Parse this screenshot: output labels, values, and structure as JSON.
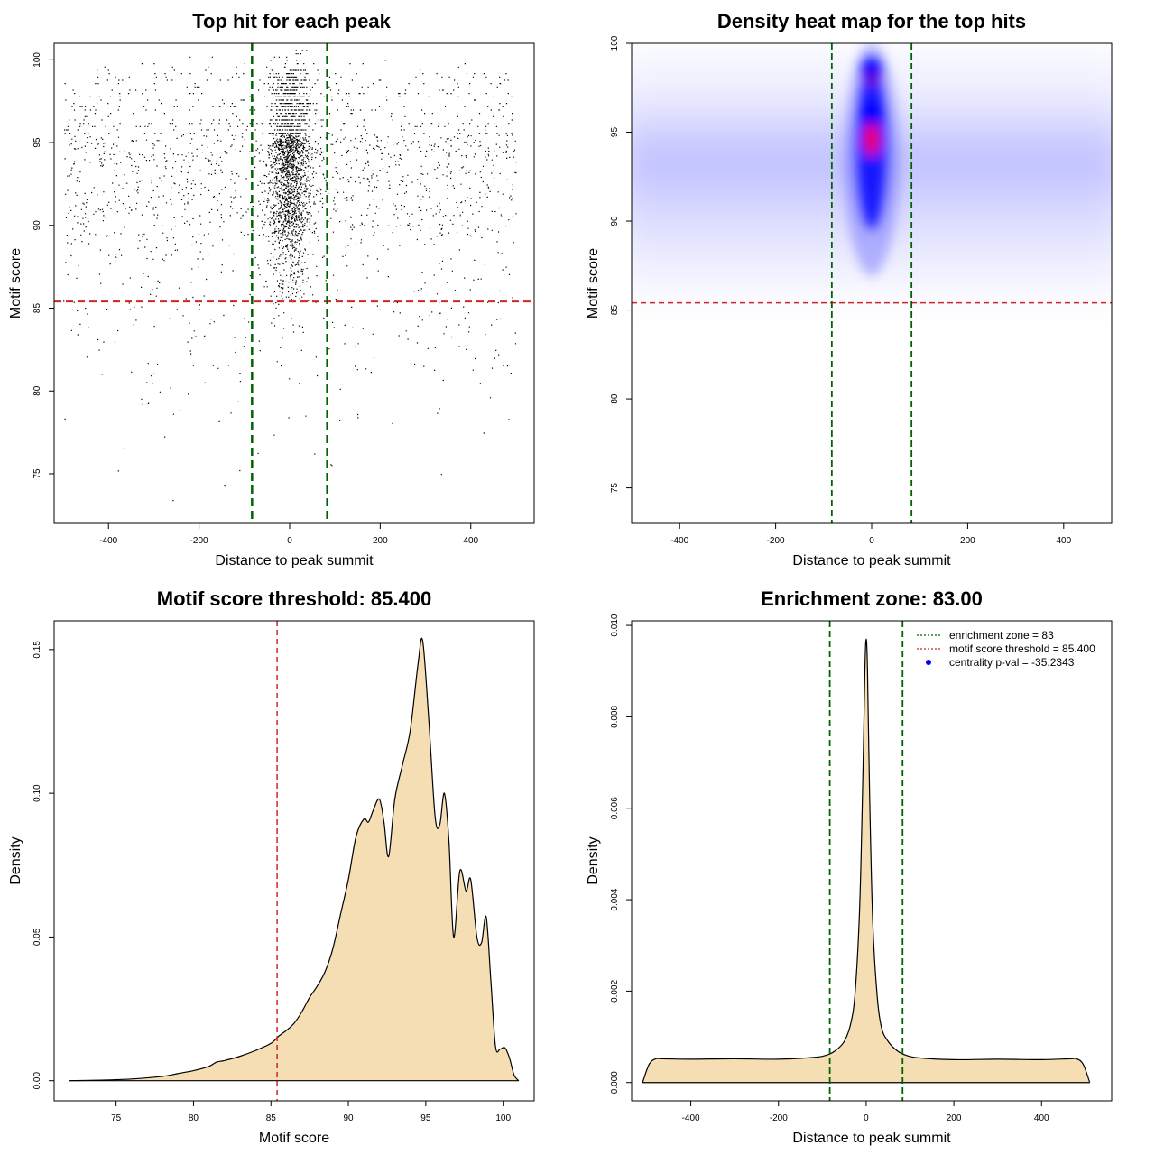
{
  "chart_data": [
    {
      "type": "scatter",
      "title": "Top hit for each peak",
      "xlabel": "Distance to peak summit",
      "ylabel": "Motif score",
      "xlim": [
        -520,
        540
      ],
      "ylim": [
        72,
        101
      ],
      "xticks": [
        -400,
        -200,
        0,
        200,
        400
      ],
      "yticks": [
        75,
        80,
        85,
        90,
        95,
        100
      ],
      "x_range": [
        -500,
        500
      ],
      "threshold": 85.4,
      "enrichment_zone": [
        -83,
        83
      ],
      "point_color": "#000000",
      "threshold_color": "#cd2626",
      "zone_color": "#006400"
    },
    {
      "type": "heatmap",
      "title": "Density heat map for the top hits",
      "xlabel": "Distance to peak summit",
      "ylabel": "Motif score",
      "xlim": [
        -500,
        500
      ],
      "ylim": [
        73,
        100
      ],
      "xticks": [
        -400,
        -200,
        0,
        200,
        400
      ],
      "yticks": [
        75,
        80,
        85,
        90,
        95,
        100
      ],
      "threshold": 85.4,
      "enrichment_zone": [
        -83,
        83
      ],
      "hotspots": [
        {
          "x": 0,
          "y": 98.5
        },
        {
          "x": 0,
          "y": 96.0
        },
        {
          "x": 0,
          "y": 94.7
        }
      ],
      "colors": {
        "low": "#ffffff",
        "mid": "#0000ff",
        "high": "#ff0000"
      },
      "threshold_color": "#cd2626",
      "zone_color": "#006400"
    },
    {
      "type": "area",
      "title": "Motif score threshold: 85.400",
      "xlabel": "Motif score",
      "ylabel": "Density",
      "xlim": [
        71,
        102
      ],
      "ylim": [
        -0.007,
        0.16
      ],
      "xticks": [
        75,
        80,
        85,
        90,
        95,
        100
      ],
      "yticks": [
        0.0,
        0.05,
        0.1,
        0.15
      ],
      "ytick_labels": [
        "0.00",
        "0.05",
        "0.10",
        "0.15"
      ],
      "threshold": 85.4,
      "fill_color": "#f5deb3",
      "threshold_color": "#cd2626",
      "x": [
        72,
        74,
        76,
        78,
        79,
        80,
        81,
        81.5,
        82,
        83,
        84,
        85,
        85.5,
        86,
        86.5,
        87,
        87.5,
        88,
        88.5,
        89,
        89.5,
        90,
        90.5,
        91,
        91.3,
        91.6,
        92,
        92.3,
        92.6,
        93,
        93.5,
        94,
        94.5,
        94.8,
        95.2,
        95.6,
        95.9,
        96.2,
        96.5,
        96.8,
        97.2,
        97.6,
        97.9,
        98.3,
        98.6,
        98.9,
        99.2,
        99.5,
        99.8,
        100.1,
        100.4,
        100.7,
        101
      ],
      "y": [
        0.0,
        0.0002,
        0.0006,
        0.0015,
        0.0025,
        0.0035,
        0.005,
        0.0065,
        0.007,
        0.0085,
        0.0105,
        0.013,
        0.0155,
        0.0175,
        0.02,
        0.024,
        0.029,
        0.033,
        0.038,
        0.046,
        0.058,
        0.07,
        0.085,
        0.091,
        0.09,
        0.094,
        0.098,
        0.09,
        0.078,
        0.098,
        0.11,
        0.122,
        0.145,
        0.153,
        0.125,
        0.092,
        0.089,
        0.1,
        0.083,
        0.05,
        0.073,
        0.066,
        0.07,
        0.05,
        0.048,
        0.057,
        0.035,
        0.012,
        0.011,
        0.0115,
        0.008,
        0.002,
        0.0
      ]
    },
    {
      "type": "area",
      "title": "Enrichment zone: 83.00",
      "xlabel": "Distance to peak summit",
      "ylabel": "Density",
      "xlim": [
        -535,
        560
      ],
      "ylim": [
        -0.0004,
        0.0101
      ],
      "xticks": [
        -400,
        -200,
        0,
        200,
        400
      ],
      "yticks": [
        0.0,
        0.002,
        0.004,
        0.006,
        0.008,
        0.01
      ],
      "ytick_labels": [
        "0.000",
        "0.002",
        "0.004",
        "0.006",
        "0.008",
        "0.010"
      ],
      "enrichment_zone": [
        -83,
        83
      ],
      "fill_color": "#f5deb3",
      "zone_color": "#006400",
      "threshold_color": "#cd2626",
      "x": [
        -510,
        -495,
        -480,
        -465,
        -400,
        -300,
        -200,
        -120,
        -90,
        -70,
        -50,
        -35,
        -25,
        -15,
        -8,
        -3,
        0,
        3,
        8,
        15,
        25,
        35,
        50,
        70,
        90,
        120,
        200,
        300,
        400,
        465,
        480,
        495,
        510
      ],
      "y": [
        0.0,
        0.0004,
        0.00052,
        0.00052,
        0.00051,
        0.00052,
        0.00051,
        0.00055,
        0.0006,
        0.0007,
        0.0009,
        0.0013,
        0.002,
        0.0038,
        0.0065,
        0.009,
        0.0097,
        0.009,
        0.0062,
        0.0035,
        0.0019,
        0.0012,
        0.0009,
        0.0007,
        0.0006,
        0.00054,
        0.0005,
        0.00051,
        0.0005,
        0.00052,
        0.00052,
        0.0004,
        0.0
      ],
      "legend": {
        "position": "top-right",
        "entries": [
          {
            "label": "enrichment zone = 83",
            "type": "dotted-line",
            "color": "#006400"
          },
          {
            "label": "motif score threshold = 85.400",
            "type": "dotted-line",
            "color": "#cd2626"
          },
          {
            "label": "centrality p-val = -35.2343",
            "type": "point",
            "color": "#0000ff"
          }
        ]
      }
    }
  ]
}
